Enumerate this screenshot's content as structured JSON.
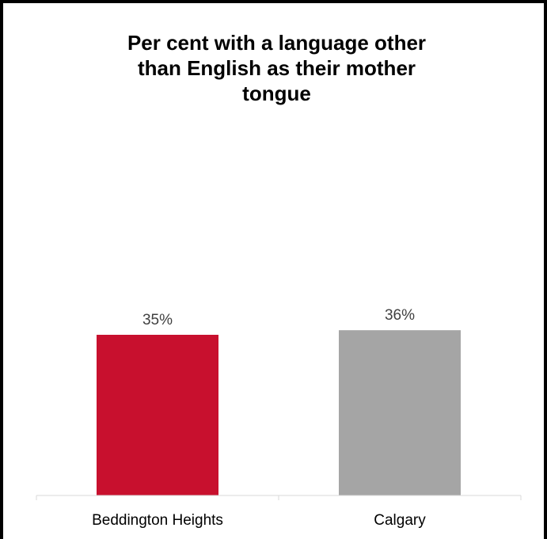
{
  "chart_data": {
    "type": "bar",
    "title_lines": [
      "Per cent with a language other",
      "than English as their mother",
      "tongue"
    ],
    "categories": [
      "Beddington Heights",
      "Calgary"
    ],
    "values": [
      35,
      36
    ],
    "data_labels": [
      "35%",
      "36%"
    ],
    "colors": [
      "#c8102e",
      "#a5a5a5"
    ],
    "ylim": [
      0,
      60
    ],
    "grid": false,
    "legend": "none",
    "xlabel": "",
    "ylabel": ""
  }
}
